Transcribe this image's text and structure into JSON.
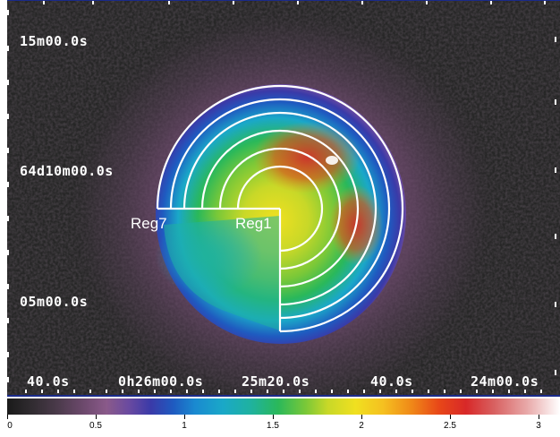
{
  "coordinate_labels": {
    "dec_top": "15m00.0s",
    "dec_mid": "64d10m00.0s",
    "dec_low": "05m00.0s",
    "ra_1": "40.0s",
    "ra_2": "0h26m00.0s",
    "ra_3": "25m20.0s",
    "ra_4": "40.0s",
    "ra_5": "24m00.0s"
  },
  "regions": {
    "outer_label": "Reg7",
    "inner_label": "Reg1",
    "color": "#ffffff"
  },
  "colorbar": {
    "ticks": [
      "0",
      "0.5",
      "1",
      "1.5",
      "2",
      "2.5",
      "3"
    ]
  },
  "colors": {
    "background": "#262626",
    "axis_line": "#1a2a8a"
  }
}
